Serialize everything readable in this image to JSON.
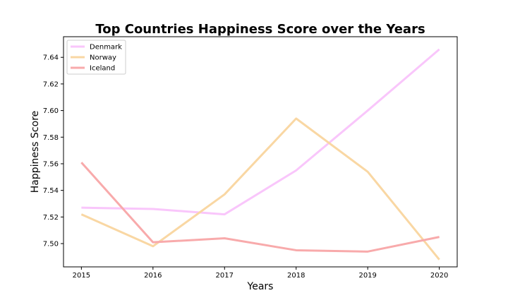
{
  "chart_data": {
    "type": "line",
    "title": "Top Countries Happiness Score over the Years",
    "xlabel": "Years",
    "ylabel": "Happiness Score",
    "x": [
      2015,
      2016,
      2017,
      2018,
      2019,
      2020
    ],
    "xlim": [
      2014.75,
      2020.25
    ],
    "ylim": [
      7.4825,
      7.6555
    ],
    "yticks": [
      7.5,
      7.52,
      7.54,
      7.56,
      7.58,
      7.6,
      7.62,
      7.64
    ],
    "legend_position": "top-left",
    "grid": false,
    "series": [
      {
        "name": "Denmark",
        "color": "#f9c6fb",
        "values": [
          7.527,
          7.526,
          7.522,
          7.555,
          7.6,
          7.646
        ]
      },
      {
        "name": "Norway",
        "color": "#f9d7a3",
        "values": [
          7.522,
          7.498,
          7.537,
          7.594,
          7.554,
          7.488
        ]
      },
      {
        "name": "Iceland",
        "color": "#f8aaab",
        "values": [
          7.561,
          7.501,
          7.504,
          7.495,
          7.494,
          7.505
        ]
      }
    ]
  }
}
